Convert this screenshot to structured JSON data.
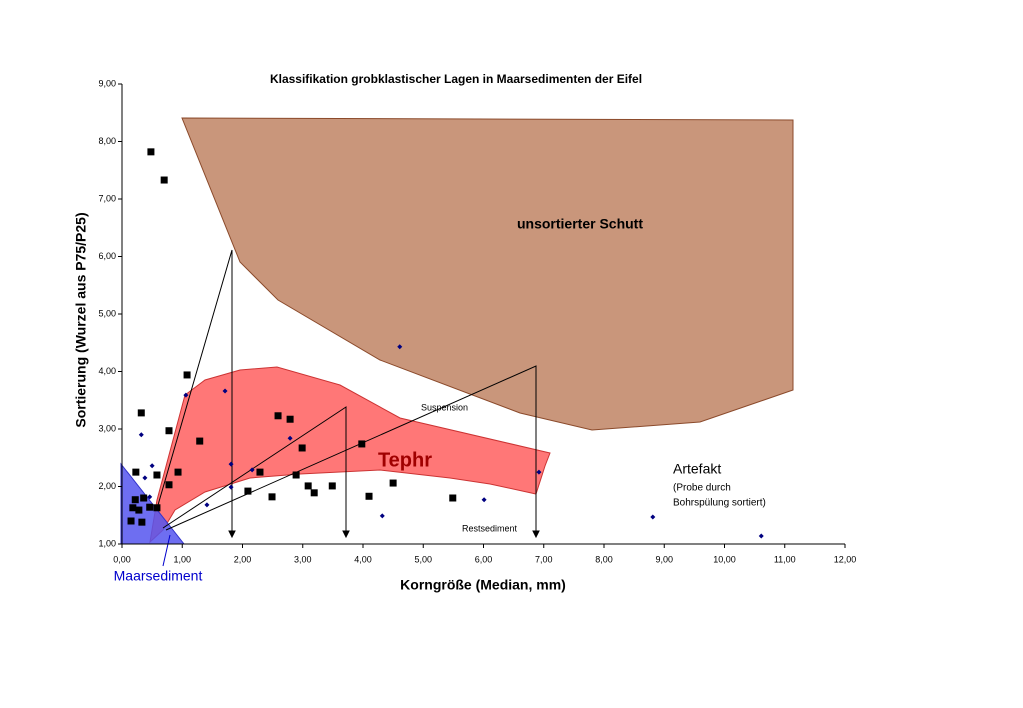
{
  "chart_data": {
    "type": "scatter",
    "title": "Klassifikation grobklastischer Lagen in Maarsedimenten der Eifel",
    "x_label": "Korngröße (Median, mm)",
    "y_label": "Sortierung (Wurzel aus P75/P25)",
    "xlim": [
      0,
      12
    ],
    "ylim": [
      1,
      9
    ],
    "xticks": [
      {
        "value": 0,
        "label": "0,00"
      },
      {
        "value": 1,
        "label": "1,00"
      },
      {
        "value": 2,
        "label": "2,00"
      },
      {
        "value": 3,
        "label": "3,00"
      },
      {
        "value": 4,
        "label": "4,00"
      },
      {
        "value": 5,
        "label": "5,00"
      },
      {
        "value": 6,
        "label": "6,00"
      },
      {
        "value": 7,
        "label": "7,00"
      },
      {
        "value": 8,
        "label": "8,00"
      },
      {
        "value": 9,
        "label": "9,00"
      },
      {
        "value": 10,
        "label": "10,00"
      },
      {
        "value": 11,
        "label": "11,00"
      },
      {
        "value": 12,
        "label": "12,00"
      }
    ],
    "yticks": [
      {
        "value": 1,
        "label": "1,00"
      },
      {
        "value": 2,
        "label": "2,00"
      },
      {
        "value": 3,
        "label": "3,00"
      },
      {
        "value": 4,
        "label": "4,00"
      },
      {
        "value": 5,
        "label": "5,00"
      },
      {
        "value": 6,
        "label": "6,00"
      },
      {
        "value": 7,
        "label": "7,00"
      },
      {
        "value": 8,
        "label": "8,00"
      },
      {
        "value": 9,
        "label": "9,00"
      }
    ],
    "series": [
      {
        "color": "#000000",
        "marker": "square",
        "x": [
          0.48,
          0.7,
          1.08,
          0.32,
          0.78,
          1.29,
          2.59,
          2.79,
          2.99,
          0.93,
          0.58,
          0.23,
          0.78,
          2.29,
          2.89,
          3.98,
          4.5,
          3.09,
          3.19,
          3.49,
          2.09,
          2.49,
          4.1,
          5.49,
          0.22,
          0.36,
          0.18,
          0.28,
          0.46,
          0.58,
          0.33,
          0.15
        ],
        "values": [
          7.82,
          7.33,
          3.94,
          3.28,
          2.97,
          2.79,
          3.23,
          3.17,
          2.67,
          2.25,
          2.2,
          2.25,
          2.03,
          2.25,
          2.2,
          2.74,
          2.06,
          2.01,
          1.89,
          2.01,
          1.92,
          1.82,
          1.83,
          1.8,
          1.77,
          1.8,
          1.63,
          1.59,
          1.64,
          1.63,
          1.38,
          1.4
        ]
      },
      {
        "color": "#000080",
        "marker": "diamond",
        "x": [
          0.32,
          0.5,
          1.06,
          1.71,
          1.81,
          2.79,
          2.16,
          1.81,
          1.41,
          4.61,
          6.92,
          6.01,
          4.32,
          8.81,
          10.61,
          0.38,
          0.46
        ],
        "values": [
          2.9,
          2.36,
          3.59,
          3.66,
          2.39,
          2.84,
          2.29,
          1.99,
          1.68,
          4.43,
          2.25,
          1.77,
          1.49,
          1.47,
          1.14,
          2.15,
          1.82
        ]
      }
    ],
    "annotations": [
      "unsortierter Schutt",
      "Tephr",
      "Maarsediment",
      "Artefakt",
      "(Probe  durch",
      "Bohrspülung sortiert)",
      "Suspension",
      "Restsediment"
    ]
  }
}
